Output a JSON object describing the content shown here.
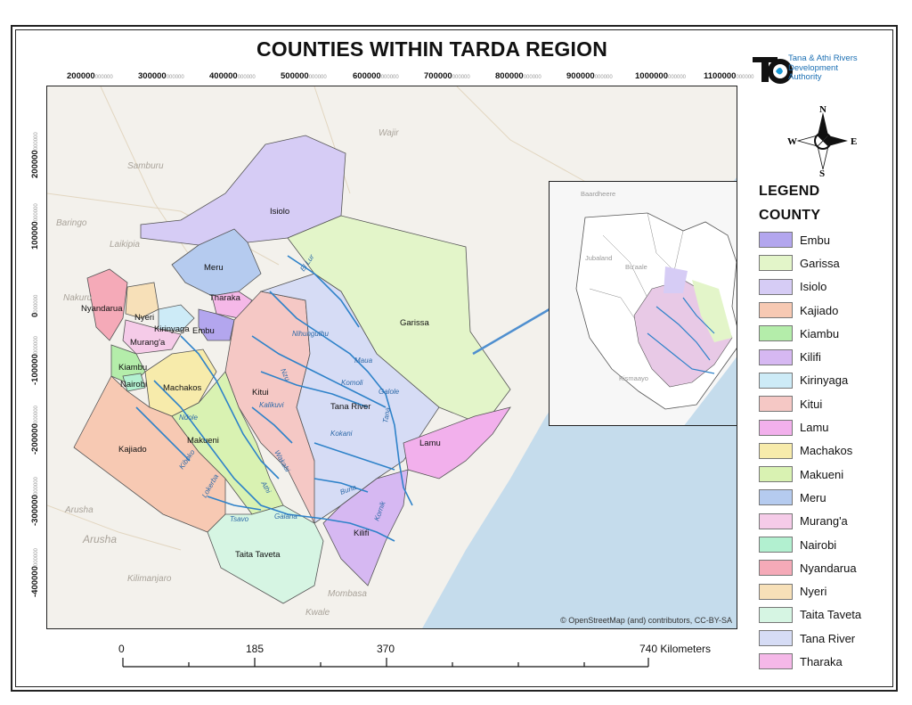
{
  "title": "COUNTIES WITHIN TARDA REGION",
  "logo": {
    "line1": "Tana & Athi Rivers",
    "line2": "Development",
    "line3": "Authority",
    "icon": "tarda-logo",
    "color": "#1b6fb3"
  },
  "x_ticks": [
    {
      "value": "200000",
      "suffix": "000000"
    },
    {
      "value": "300000",
      "suffix": "000000"
    },
    {
      "value": "400000",
      "suffix": "000000"
    },
    {
      "value": "500000",
      "suffix": "000000"
    },
    {
      "value": "600000",
      "suffix": "000000"
    },
    {
      "value": "700000",
      "suffix": "000000"
    },
    {
      "value": "800000",
      "suffix": "000000"
    },
    {
      "value": "900000",
      "suffix": "000000"
    },
    {
      "value": "1000000",
      "suffix": "000000"
    },
    {
      "value": "1100000",
      "suffix": "000000"
    }
  ],
  "y_ticks": [
    {
      "value": "200000",
      "suffix": "000000"
    },
    {
      "value": "100000",
      "suffix": "000000"
    },
    {
      "value": "0",
      "suffix": "000000"
    },
    {
      "value": "-100000",
      "suffix": "000000"
    },
    {
      "value": "-200000",
      "suffix": "000000"
    },
    {
      "value": "-300000",
      "suffix": "000000"
    },
    {
      "value": "-400000",
      "suffix": "000000"
    }
  ],
  "attribution": "© OpenStreetMap (and) contributors, CC-BY-SA",
  "north_arrow": {
    "n": "N",
    "s": "S",
    "e": "E",
    "w": "W"
  },
  "legend": {
    "heading": "LEGEND",
    "subheading": "COUNTY",
    "items": [
      {
        "label": "Embu",
        "color": "#b3a6ee"
      },
      {
        "label": "Garissa",
        "color": "#e3f5c9"
      },
      {
        "label": "Isiolo",
        "color": "#d6ccf5"
      },
      {
        "label": "Kajiado",
        "color": "#f7c9b3"
      },
      {
        "label": "Kiambu",
        "color": "#b4edaa"
      },
      {
        "label": "Kilifi",
        "color": "#d6b8f2"
      },
      {
        "label": "Kirinyaga",
        "color": "#cdebf7"
      },
      {
        "label": "Kitui",
        "color": "#f5c8c5"
      },
      {
        "label": "Lamu",
        "color": "#f2b0ec"
      },
      {
        "label": "Machakos",
        "color": "#f7ebab"
      },
      {
        "label": "Makueni",
        "color": "#d9f2b2"
      },
      {
        "label": "Meru",
        "color": "#b5cbef"
      },
      {
        "label": "Murang'a",
        "color": "#f5cbe8"
      },
      {
        "label": "Nairobi",
        "color": "#b2f0d0"
      },
      {
        "label": "Nyandarua",
        "color": "#f5aab8"
      },
      {
        "label": "Nyeri",
        "color": "#f7e0b8"
      },
      {
        "label": "Taita Taveta",
        "color": "#d6f5e3"
      },
      {
        "label": "Tana River",
        "color": "#d6dcf5"
      },
      {
        "label": "Tharaka",
        "color": "#f5b8e8"
      }
    ]
  },
  "county_labels": [
    "Isiolo",
    "Meru",
    "Tharaka",
    "Garissa",
    "Nyandarua",
    "Nyeri",
    "Kirinyaga",
    "Embu",
    "Murang'a",
    "Kiambu",
    "Nairobi",
    "Machakos",
    "Kitui",
    "Tana River",
    "Lamu",
    "Kajiado",
    "Makueni",
    "Kilifi",
    "Taita Taveta"
  ],
  "river_labels": [
    "El Lur",
    "Nihunguthu",
    "Maua",
    "Komoli",
    "Galole",
    "Tana",
    "Kalikuvi",
    "Nzu",
    "Athi",
    "Kokani",
    "Wakabi",
    "Buna",
    "Kornik",
    "Galana",
    "Tsavo",
    "Lokerba",
    "Kiboko",
    "Ndole"
  ],
  "basemap_labels": [
    "Samburu",
    "Wajir",
    "Baringo",
    "Laikipia",
    "Nakuru",
    "Arusha",
    "Arusha",
    "Kilimanjaro",
    "Mombasa",
    "Kwale"
  ],
  "inset_labels": [
    "Baardheere",
    "Jubaland",
    "Bu'aale",
    "Kismaayo"
  ],
  "scale": {
    "labels": [
      "0",
      "185",
      "370",
      "740 Kilometers"
    ]
  },
  "colors": {
    "water": "#c8dce8",
    "sea": "#c5dcec",
    "river": "#2e82c9",
    "boundary": "#6b6b6b"
  }
}
